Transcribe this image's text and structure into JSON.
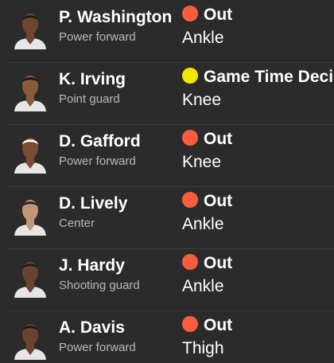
{
  "colors": {
    "out": "#fa5d3d",
    "gtd": "#f4e600"
  },
  "players": [
    {
      "name": "P. Washington",
      "position": "Power forward",
      "status": "Out",
      "status_color": "#fa5d3d",
      "injury": "Ankle",
      "skin": "#6e4630",
      "hair": "#1a1a1a",
      "jersey": "#e6e6e6"
    },
    {
      "name": "K. Irving",
      "position": "Point guard",
      "status": "Game Time Decision",
      "status_color": "#f4e600",
      "injury": "Knee",
      "skin": "#8a5a3c",
      "hair": "#1c1410",
      "jersey": "#e6e6e6"
    },
    {
      "name": "D. Gafford",
      "position": "Power forward",
      "status": "Out",
      "status_color": "#fa5d3d",
      "injury": "Knee",
      "skin": "#7a4c33",
      "hair": "#ffffff",
      "jersey": "#e6e6e6"
    },
    {
      "name": "D. Lively",
      "position": "Center",
      "status": "Out",
      "status_color": "#fa5d3d",
      "injury": "Ankle",
      "skin": "#c29676",
      "hair": "#2a1f18",
      "jersey": "#e6e6e6"
    },
    {
      "name": "J. Hardy",
      "position": "Shooting guard",
      "status": "Out",
      "status_color": "#fa5d3d",
      "injury": "Ankle",
      "skin": "#6a4330",
      "hair": "#1a1a1a",
      "jersey": "#e6e6e6"
    },
    {
      "name": "A. Davis",
      "position": "Power forward",
      "status": "Out",
      "status_color": "#fa5d3d",
      "injury": "Thigh",
      "skin": "#6a4330",
      "hair": "#1a1a1a",
      "jersey": "#e6e6e6"
    }
  ]
}
